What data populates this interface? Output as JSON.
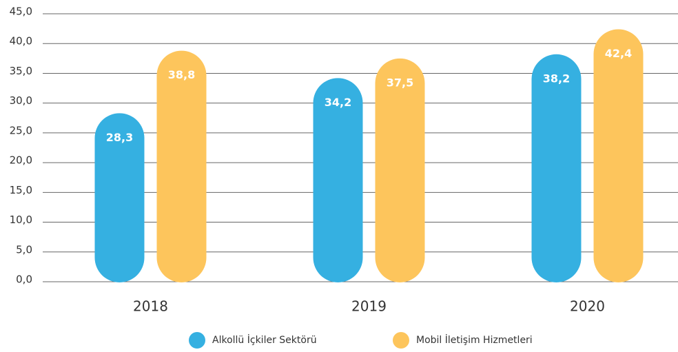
{
  "chart_data": {
    "type": "bar",
    "categories": [
      "2018",
      "2019",
      "2020"
    ],
    "series": [
      {
        "name": "Alkollü İçkiler Sektörü",
        "color": "#35b0e1",
        "values": [
          28.3,
          34.2,
          38.2
        ],
        "value_labels": [
          "28,3",
          "34,2",
          "38,2"
        ]
      },
      {
        "name": "Mobil İletişim Hizmetleri",
        "color": "#fdc55c",
        "values": [
          38.8,
          37.5,
          42.4
        ],
        "value_labels": [
          "38,8",
          "37,5",
          "42,4"
        ]
      }
    ],
    "ylim": [
      0,
      45
    ],
    "yticks": [
      {
        "value": 0,
        "label": "0,0"
      },
      {
        "value": 5,
        "label": "5,0"
      },
      {
        "value": 10,
        "label": "10,0"
      },
      {
        "value": 15,
        "label": "15,0"
      },
      {
        "value": 20,
        "label": "20,0"
      },
      {
        "value": 25,
        "label": "25,0"
      },
      {
        "value": 30,
        "label": "30,0"
      },
      {
        "value": 35,
        "label": "35,0"
      },
      {
        "value": 40,
        "label": "40,0"
      },
      {
        "value": 45,
        "label": "45,0"
      }
    ],
    "grid": true,
    "legend": "bottom"
  }
}
